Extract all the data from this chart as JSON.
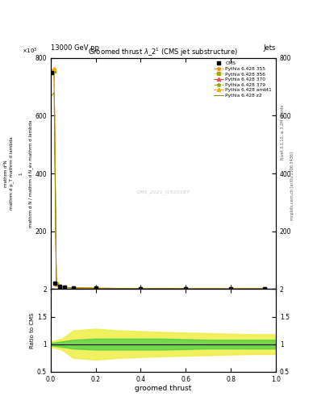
{
  "header_left": "13000 GeV pp",
  "header_right": "Jets",
  "title": "Groomed thrustλ_2¹ (CMS jet substructure)",
  "xlabel": "groomed thrust",
  "ylabel_main_lines": [
    "mathrm d²N",
    "mathrm d p_T mathrm d lambda",
    "",
    "1",
    "mathrm d N / mathrm d N_ev mathrm d lambda"
  ],
  "ylabel_ratio": "Ratio to CMS",
  "right_label1": "Rivet 3.1.10, ≥ 3.2M events",
  "right_label2": "mcplots.cern.ch [arXiv:1306.3436]",
  "watermark": "CMS_2021_I1920187",
  "xlim": [
    0,
    1
  ],
  "ylim_main": [
    0,
    800
  ],
  "ylim_ratio": [
    0.5,
    2.0
  ],
  "yticks_main": [
    0,
    200,
    400,
    600,
    800
  ],
  "yticks_ratio": [
    0.5,
    1.0,
    1.5,
    2.0
  ],
  "cms_x": [
    0.005,
    0.02,
    0.04,
    0.06,
    0.1,
    0.2,
    0.4,
    0.6,
    0.8,
    0.95
  ],
  "cms_y": [
    750,
    20,
    10,
    7,
    5,
    3,
    2,
    2,
    1,
    1
  ],
  "pythia_x": [
    0.005,
    0.015,
    0.025,
    0.04,
    0.06,
    0.1,
    0.2,
    0.4,
    0.6,
    0.8,
    0.95
  ],
  "pythia_355_y": [
    755,
    760,
    18,
    9,
    6,
    4,
    3,
    2,
    1,
    1,
    1
  ],
  "pythia_356_y": [
    750,
    755,
    18,
    9,
    6,
    4,
    3,
    2,
    1,
    1,
    1
  ],
  "pythia_370_y": [
    755,
    760,
    18,
    9,
    6,
    4,
    3,
    2,
    1,
    1,
    1
  ],
  "pythia_379_y": [
    750,
    758,
    18,
    9,
    6,
    4,
    3,
    2,
    1,
    1,
    1
  ],
  "pythia_ambt1_y": [
    755,
    762,
    18,
    9,
    6,
    4,
    3,
    2,
    1,
    1,
    1
  ],
  "pythia_z2_y": [
    670,
    680,
    18,
    9,
    6,
    4,
    3,
    2,
    1,
    1,
    1
  ],
  "ratio_x": [
    0.0,
    0.05,
    0.1,
    0.2,
    0.3,
    0.5,
    0.7,
    0.9,
    1.0
  ],
  "ratio_green_upper": [
    1.02,
    1.05,
    1.08,
    1.1,
    1.1,
    1.1,
    1.08,
    1.08,
    1.08
  ],
  "ratio_green_lower": [
    0.98,
    0.95,
    0.92,
    0.9,
    0.9,
    0.9,
    0.92,
    0.92,
    0.92
  ],
  "ratio_yellow_upper": [
    1.05,
    1.1,
    1.25,
    1.28,
    1.25,
    1.22,
    1.2,
    1.18,
    1.18
  ],
  "ratio_yellow_lower": [
    0.95,
    0.9,
    0.75,
    0.72,
    0.75,
    0.78,
    0.8,
    0.82,
    0.82
  ],
  "colors": {
    "cms": "#000000",
    "pythia_355": "#ff8800",
    "pythia_356": "#aaaa00",
    "pythia_370": "#ff4444",
    "pythia_379": "#88aa00",
    "pythia_ambt1": "#ffaa00",
    "pythia_z2": "#888800",
    "green_band": "#44cc44",
    "yellow_band": "#eeee44"
  }
}
